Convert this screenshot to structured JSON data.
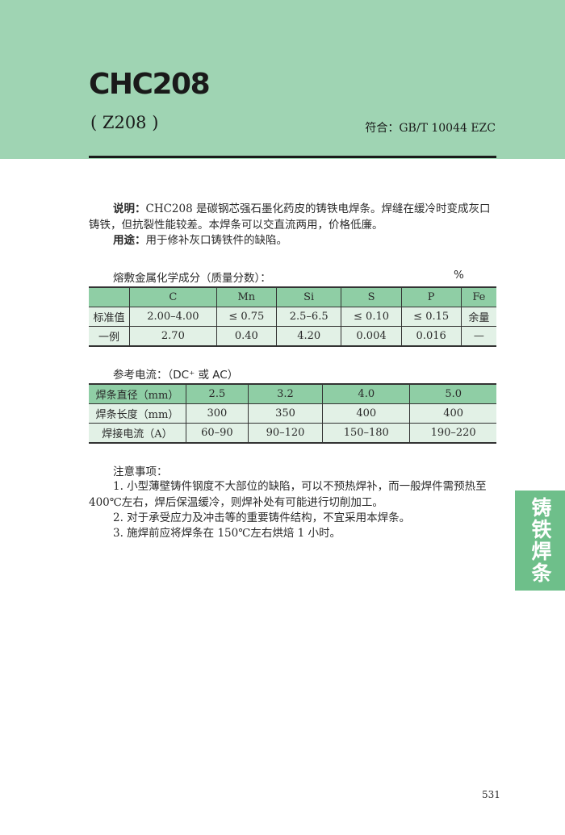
{
  "header": {
    "title": "CHC208",
    "subtitle": "( Z208 )",
    "standard": "符合：GB/T 10044 EZC"
  },
  "description": {
    "label": "说明：",
    "text": "CHC208 是碳钢芯强石墨化药皮的铸铁电焊条。焊缝在缓冷时变成灰口铸铁，但抗裂性能较差。本焊条可以交直流两用，价格低廉。"
  },
  "usage": {
    "label": "用途：",
    "text": "用于修补灰口铸铁件的缺陷。"
  },
  "composition": {
    "heading": "熔敷金属化学成分（质量分数）：",
    "unit": "%",
    "columns": [
      "",
      "C",
      "Mn",
      "Si",
      "S",
      "P",
      "Fe"
    ],
    "rows": [
      [
        "标准值",
        "2.00–4.00",
        "≤ 0.75",
        "2.5–6.5",
        "≤ 0.10",
        "≤ 0.15",
        "余量"
      ],
      [
        "一例",
        "2.70",
        "0.40",
        "4.20",
        "0.004",
        "0.016",
        "—"
      ]
    ]
  },
  "current": {
    "heading": "参考电流：（DC⁺ 或 AC）",
    "rows": [
      [
        "焊条直径（mm）",
        "2.5",
        "3.2",
        "4.0",
        "5.0"
      ],
      [
        "焊条长度（mm）",
        "300",
        "350",
        "400",
        "400"
      ],
      [
        "焊接电流（A）",
        "60–90",
        "90–120",
        "150–180",
        "190–220"
      ]
    ]
  },
  "notes": {
    "heading": "注意事项：",
    "items": [
      "1. 小型薄壁铸件钢度不大部位的缺陷，可以不预热焊补，而一般焊件需预热至 400℃左右，焊后保温缓冷，则焊补处有可能进行切削加工。",
      "2. 对于承受应力及冲击等的重要铸件结构，不宜采用本焊条。",
      "3. 施焊前应将焊条在 150℃左右烘焙 1 小时。"
    ]
  },
  "side_tab": "铸铁焊条",
  "page_number": "531",
  "colors": {
    "band": "#9fd4b3",
    "table_header": "#8fcea5",
    "table_row": "#e2f1e6",
    "side_tab": "#6ebf8a"
  }
}
